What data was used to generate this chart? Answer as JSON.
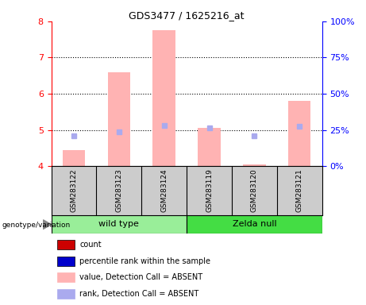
{
  "title": "GDS3477 / 1625216_at",
  "samples": [
    "GSM283122",
    "GSM283123",
    "GSM283124",
    "GSM283119",
    "GSM283120",
    "GSM283121"
  ],
  "ylim_left": [
    4.0,
    8.0
  ],
  "ylim_right": [
    0,
    100
  ],
  "yticks_left": [
    4,
    5,
    6,
    7,
    8
  ],
  "yticks_right": [
    0,
    25,
    50,
    75,
    100
  ],
  "bar_color_absent": "#ffb3b3",
  "rank_color_absent": "#aaaaee",
  "bar_values": [
    4.45,
    6.6,
    7.75,
    5.05,
    4.05,
    5.8
  ],
  "rank_values": [
    4.85,
    4.95,
    5.12,
    5.05,
    4.85,
    5.1
  ],
  "detection_call": [
    "ABSENT",
    "ABSENT",
    "ABSENT",
    "ABSENT",
    "ABSENT",
    "ABSENT"
  ],
  "wild_type_color": "#99ee99",
  "zelda_null_color": "#44dd44",
  "label_area_color": "#cccccc",
  "legend_items": [
    {
      "label": "count",
      "color": "#cc0000"
    },
    {
      "label": "percentile rank within the sample",
      "color": "#0000cc"
    },
    {
      "label": "value, Detection Call = ABSENT",
      "color": "#ffb3b3"
    },
    {
      "label": "rank, Detection Call = ABSENT",
      "color": "#aaaaee"
    }
  ],
  "background_color": "#ffffff"
}
